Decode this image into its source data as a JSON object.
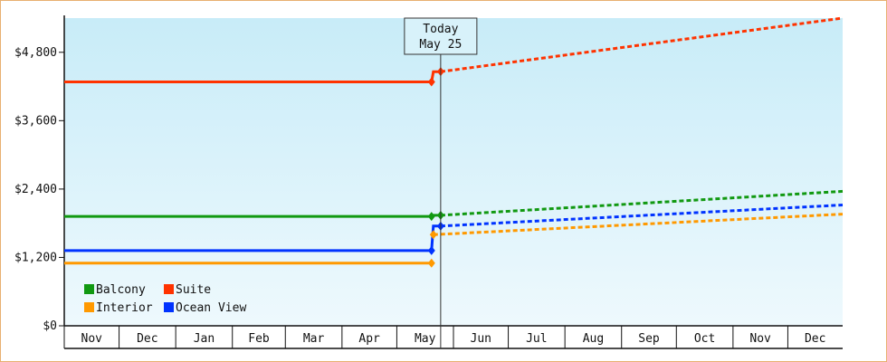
{
  "chart_data": {
    "type": "line",
    "title": "",
    "xlabel": "",
    "ylabel": "",
    "ylim": [
      0,
      5400
    ],
    "yticks": [
      {
        "value": 0,
        "label": "$0"
      },
      {
        "value": 1200,
        "label": "$1,200"
      },
      {
        "value": 2400,
        "label": "$2,400"
      },
      {
        "value": 3600,
        "label": "$3,600"
      },
      {
        "value": 4800,
        "label": "$4,800"
      }
    ],
    "month_labels": [
      "Nov",
      "Dec",
      "Jan",
      "Feb",
      "Mar",
      "Apr",
      "May",
      "Jun",
      "Jul",
      "Aug",
      "Sep",
      "Oct",
      "Nov",
      "Dec"
    ],
    "xlim": [
      "2023-11-01",
      "2024-12-31"
    ],
    "today": {
      "date": "2024-05-25",
      "line1": "Today",
      "line2": "May 25"
    },
    "legend_position": "bottom-left",
    "grid": false,
    "series": [
      {
        "name": "Suite",
        "color": "#ff3300",
        "history": [
          [
            "2023-11-01",
            4280
          ],
          [
            "2024-05-20",
            4280
          ],
          [
            "2024-05-21",
            4460
          ],
          [
            "2024-05-25",
            4460
          ]
        ],
        "forecast": [
          [
            "2024-05-25",
            4460
          ],
          [
            "2024-12-31",
            5400
          ]
        ]
      },
      {
        "name": "Balcony",
        "color": "#119911",
        "history": [
          [
            "2023-11-01",
            1920
          ],
          [
            "2024-05-20",
            1920
          ],
          [
            "2024-05-21",
            1940
          ],
          [
            "2024-05-25",
            1940
          ]
        ],
        "forecast": [
          [
            "2024-05-25",
            1940
          ],
          [
            "2024-12-31",
            2360
          ]
        ]
      },
      {
        "name": "Ocean View",
        "color": "#0033ff",
        "history": [
          [
            "2023-11-01",
            1320
          ],
          [
            "2024-05-20",
            1320
          ],
          [
            "2024-05-21",
            1750
          ],
          [
            "2024-05-25",
            1750
          ]
        ],
        "forecast": [
          [
            "2024-05-25",
            1750
          ],
          [
            "2024-12-31",
            2120
          ]
        ]
      },
      {
        "name": "Interior",
        "color": "#ff9900",
        "history": [
          [
            "2023-11-01",
            1100
          ],
          [
            "2024-05-20",
            1100
          ]
        ],
        "forecast": [
          [
            "2024-05-21",
            1600
          ],
          [
            "2024-12-31",
            1960
          ]
        ]
      }
    ],
    "legend_order": [
      "Balcony",
      "Suite",
      "Interior",
      "Ocean View"
    ]
  }
}
